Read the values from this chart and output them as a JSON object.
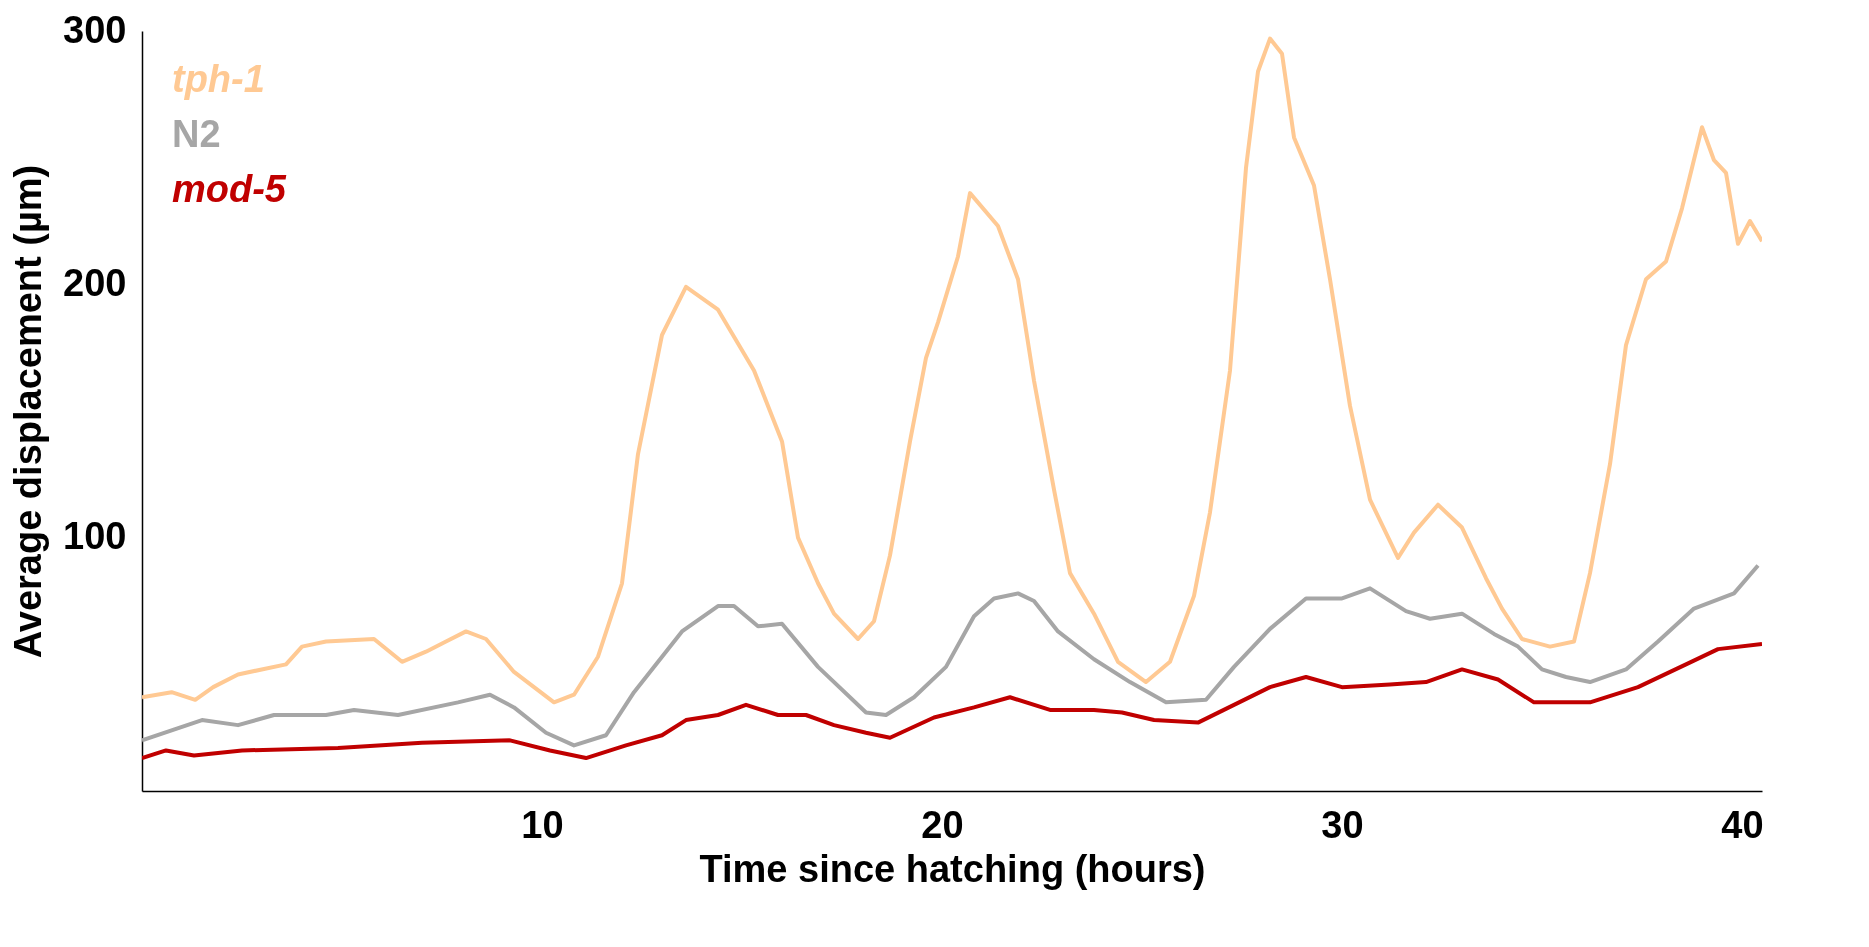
{
  "chart_data": {
    "type": "line",
    "xlabel": "Time since hatching (hours)",
    "ylabel": "Average displacement (µm)",
    "xlim": [
      0,
      40.5
    ],
    "xticks": [
      10,
      20,
      30,
      40
    ],
    "ylim": [
      0,
      300
    ],
    "yticks": [
      100,
      200,
      300
    ],
    "grid": false,
    "legend": "top left",
    "marker": "none",
    "line_style": "solid",
    "series": [
      {
        "name": "tph-1",
        "color": "#ffc993",
        "x": [
          0,
          0.74,
          1.33,
          1.78,
          2.4,
          3.6,
          4,
          4.6,
          5.8,
          6.5,
          7.1,
          7.6,
          8.1,
          8.6,
          9.3,
          10.3,
          10.8,
          11.4,
          12,
          12.4,
          13,
          13.6,
          14.4,
          15.3,
          16,
          16.4,
          16.9,
          17.3,
          17.9,
          18.3,
          18.7,
          19.2,
          19.6,
          19.9,
          20.4,
          20.7,
          21.4,
          21.9,
          22.3,
          22.8,
          23.2,
          23.8,
          24.4,
          25.1,
          25.7,
          26.3,
          26.7,
          27.2,
          27.6,
          27.9,
          28.2,
          28.5,
          28.8,
          29.3,
          29.7,
          30.2,
          30.7,
          31.4,
          31.8,
          32.4,
          33,
          33.6,
          34,
          34.5,
          35.2,
          35.8,
          36.2,
          36.7,
          37.1,
          37.6,
          38.1,
          38.5,
          39,
          39.3,
          39.6,
          39.9,
          40.2,
          40.5
        ],
        "values": [
          37,
          39,
          36,
          41,
          46,
          50,
          57,
          59,
          60,
          51,
          55,
          59,
          63,
          60,
          47,
          35,
          38,
          53,
          82,
          133,
          180,
          199,
          190,
          166,
          138,
          100,
          82,
          70,
          60,
          67,
          93,
          138,
          171,
          185,
          211,
          236,
          223,
          202,
          162,
          119,
          86,
          70,
          51,
          43,
          51,
          77,
          110,
          166,
          246,
          284,
          297,
          291,
          258,
          239,
          202,
          152,
          115,
          92,
          102,
          113,
          104,
          84,
          72,
          60,
          57,
          59,
          86,
          129,
          176,
          202,
          209,
          230,
          262,
          249,
          244,
          216,
          225,
          217
        ]
      },
      {
        "name": "N2",
        "color": "#a6a6a6",
        "x": [
          0,
          1.5,
          2.4,
          3.3,
          4.6,
          5.3,
          6.4,
          7.9,
          8.7,
          9.3,
          10.1,
          10.8,
          11.6,
          12.3,
          13.5,
          14.4,
          14.8,
          15.4,
          16,
          16.9,
          18.1,
          18.6,
          19.3,
          20.1,
          20.8,
          21.3,
          21.9,
          22.3,
          22.9,
          23.8,
          24.7,
          25.6,
          26.6,
          27.3,
          28.2,
          29.1,
          30,
          30.7,
          31.6,
          32.2,
          33,
          33.8,
          34.4,
          35,
          35.6,
          36.2,
          37.1,
          37.9,
          38.8,
          39.8,
          40.4
        ],
        "values": [
          20,
          28,
          26,
          30,
          30,
          32,
          30,
          35,
          38,
          33,
          23,
          18,
          22,
          39,
          63,
          73,
          73,
          65,
          66,
          49,
          31,
          30,
          37,
          49,
          69,
          76,
          78,
          75,
          63,
          52,
          43,
          35,
          36,
          49,
          64,
          76,
          76,
          80,
          71,
          68,
          70,
          62,
          57,
          48,
          45,
          43,
          48,
          59,
          72,
          78,
          89
        ]
      },
      {
        "name": "mod-5",
        "color": "#c00000",
        "x": [
          0,
          0.6,
          1.3,
          2.5,
          4.9,
          7,
          9.2,
          10.2,
          11.1,
          12.1,
          13,
          13.6,
          14.4,
          15.1,
          15.9,
          16.6,
          17.3,
          18.1,
          18.7,
          19.8,
          20.8,
          21.7,
          22.7,
          23.8,
          24.5,
          25.3,
          26.4,
          27.3,
          28.2,
          29.1,
          30,
          31.2,
          32.1,
          33,
          33.9,
          34.8,
          35.4,
          36.2,
          37.4,
          38.6,
          39.4,
          40.5
        ],
        "values": [
          13,
          16,
          14,
          16,
          17,
          19,
          20,
          16,
          13,
          18,
          22,
          28,
          30,
          34,
          30,
          30,
          26,
          23,
          21,
          29,
          33,
          37,
          32,
          32,
          31,
          28,
          27,
          34,
          41,
          45,
          41,
          42,
          43,
          48,
          44,
          35,
          35,
          35,
          41,
          50,
          56,
          58
        ]
      }
    ]
  }
}
